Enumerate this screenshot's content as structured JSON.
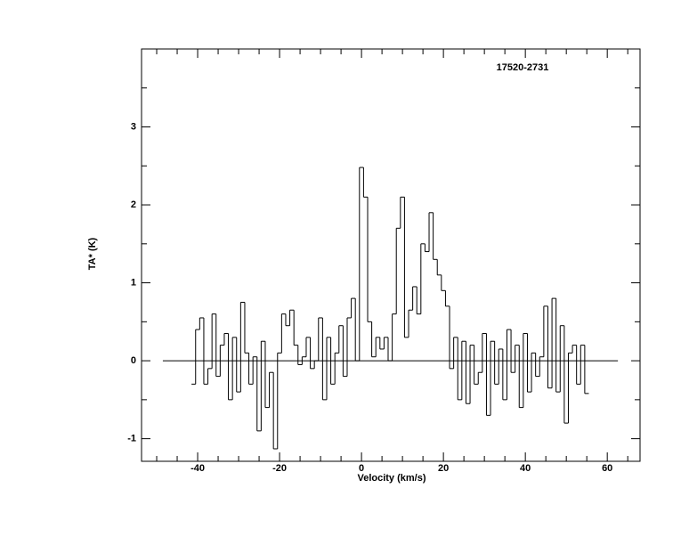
{
  "chart_data": {
    "type": "step",
    "title": "17520-2731",
    "xlabel": "Velocity (km/s)",
    "ylabel": "TA* (K)",
    "xlim": [
      -53.7,
      68.0
    ],
    "ylim": [
      -1.29,
      4.0
    ],
    "xticks": [
      -40,
      -20,
      0,
      20,
      40,
      60
    ],
    "xticks_minor": [
      -50,
      -45,
      -35,
      -30,
      -25,
      -15,
      -10,
      -5,
      5,
      10,
      15,
      25,
      30,
      35,
      45,
      50,
      55,
      65
    ],
    "yticks": [
      -1,
      0,
      1,
      2,
      3
    ],
    "yticks_minor": [
      -0.5,
      0.5,
      1.5,
      2.5,
      3.5
    ],
    "zero_line": {
      "y": 0,
      "x": [
        -48.5,
        62.6
      ]
    },
    "color": "#000000",
    "x": [
      -41,
      -40,
      -39,
      -38,
      -37,
      -36,
      -35,
      -34,
      -33,
      -32,
      -31,
      -30,
      -29,
      -28,
      -27,
      -26,
      -25,
      -24,
      -23,
      -22,
      -21,
      -20,
      -19,
      -18,
      -17,
      -16,
      -15,
      -14,
      -13,
      -12,
      -11,
      -10,
      -9,
      -8,
      -7,
      -6,
      -5,
      -4,
      -3,
      -2,
      -1,
      0,
      1,
      2,
      3,
      4,
      5,
      6,
      7,
      8,
      9,
      10,
      11,
      12,
      13,
      14,
      15,
      16,
      17,
      18,
      19,
      20,
      21,
      22,
      23,
      24,
      25,
      26,
      27,
      28,
      29,
      30,
      31,
      32,
      33,
      34,
      35,
      36,
      37,
      38,
      39,
      40,
      41,
      42,
      43,
      44,
      45,
      46,
      47,
      48,
      49,
      50,
      51,
      52,
      53,
      54,
      55
    ],
    "values": [
      -0.3,
      0.4,
      0.55,
      -0.3,
      -0.1,
      0.6,
      -0.2,
      0.2,
      0.35,
      -0.5,
      0.3,
      -0.4,
      0.75,
      0.1,
      -0.3,
      0.05,
      -0.9,
      0.25,
      -0.6,
      -0.15,
      -1.13,
      0.1,
      0.6,
      0.45,
      0.65,
      0.2,
      -0.05,
      0.05,
      0.3,
      -0.1,
      0.0,
      0.55,
      -0.5,
      0.3,
      -0.3,
      0.1,
      0.45,
      -0.2,
      0.55,
      0.8,
      0.0,
      2.48,
      2.1,
      0.5,
      0.05,
      0.3,
      0.15,
      0.3,
      0.0,
      0.6,
      1.7,
      2.1,
      0.3,
      0.65,
      0.95,
      0.6,
      1.5,
      1.4,
      1.9,
      1.3,
      1.1,
      0.9,
      0.7,
      -0.1,
      0.3,
      -0.5,
      0.25,
      -0.55,
      0.2,
      -0.3,
      -0.15,
      0.35,
      -0.7,
      0.25,
      -0.3,
      0.15,
      -0.5,
      0.4,
      -0.15,
      0.2,
      -0.6,
      0.35,
      -0.4,
      0.1,
      -0.2,
      0.05,
      0.7,
      -0.35,
      0.8,
      -0.4,
      0.45,
      -0.8,
      0.1,
      0.2,
      -0.3,
      0.2,
      -0.42
    ]
  }
}
